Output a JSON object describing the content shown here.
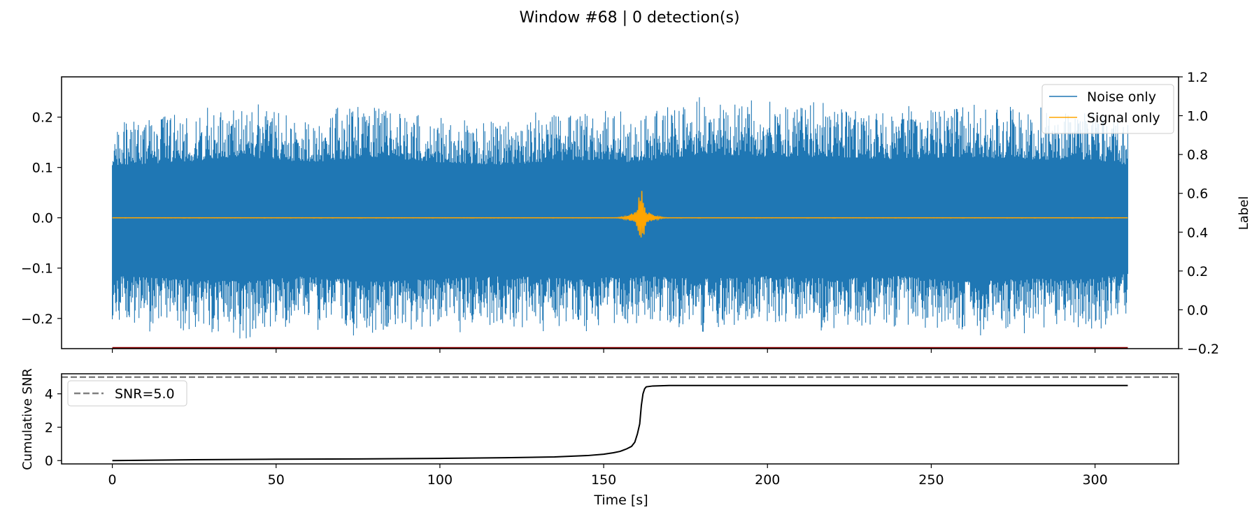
{
  "figure": {
    "title": "Window #68 | 0 detection(s)"
  },
  "chart_data": [
    {
      "type": "line",
      "panel": "waveform",
      "xlabel": "",
      "ylabel": "",
      "y2label": "Label",
      "xlim": [
        -15.5,
        325.5
      ],
      "ylim": [
        -0.26,
        0.28
      ],
      "y2lim": [
        -0.2,
        1.2
      ],
      "xticks": [
        0,
        50,
        100,
        150,
        200,
        250,
        300
      ],
      "yticks": [
        -0.2,
        -0.1,
        0.0,
        0.1,
        0.2
      ],
      "ytick_labels": [
        "−0.2",
        "−0.1",
        "0.0",
        "0.1",
        "0.2"
      ],
      "y2ticks": [
        -0.2,
        0.0,
        0.2,
        0.4,
        0.6,
        0.8,
        1.0,
        1.2
      ],
      "y2tick_labels": [
        "−0.2",
        "0.0",
        "0.2",
        "0.4",
        "0.6",
        "0.8",
        "1.0",
        "1.2"
      ],
      "legend": {
        "placement": "upper right",
        "entries": [
          "Noise only",
          "Signal only"
        ]
      },
      "series": [
        {
          "name": "Noise only",
          "color": "#1f77b4",
          "x_range": [
            0,
            310
          ],
          "envelope": {
            "x": [
              0,
              20,
              40,
              60,
              80,
              100,
              120,
              140,
              160,
              180,
              200,
              220,
              240,
              260,
              280,
              300,
              310
            ],
            "upper": [
              0.19,
              0.2,
              0.22,
              0.2,
              0.22,
              0.2,
              0.19,
              0.21,
              0.2,
              0.23,
              0.22,
              0.22,
              0.21,
              0.22,
              0.21,
              0.21,
              0.19
            ],
            "lower": [
              -0.21,
              -0.22,
              -0.23,
              -0.21,
              -0.23,
              -0.22,
              -0.21,
              -0.22,
              -0.21,
              -0.22,
              -0.21,
              -0.22,
              -0.21,
              -0.23,
              -0.22,
              -0.22,
              -0.2
            ]
          }
        },
        {
          "name": "Signal only",
          "color": "#ffa500",
          "x_range": [
            0,
            310
          ],
          "event_time": 161.5,
          "peak_amplitude": 0.06,
          "min_amplitude": -0.055
        },
        {
          "name": "",
          "axis": "right",
          "color": "#8b0000",
          "x": [
            0,
            310
          ],
          "values": [
            -0.2,
            -0.2
          ]
        }
      ]
    },
    {
      "type": "line",
      "panel": "cumulative_snr",
      "xlabel": "Time [s]",
      "ylabel": "Cumulative SNR",
      "xlim": [
        -15.5,
        325.5
      ],
      "ylim": [
        -0.2,
        5.2
      ],
      "xticks": [
        0,
        50,
        100,
        150,
        200,
        250,
        300
      ],
      "yticks": [
        0,
        2,
        4
      ],
      "legend": {
        "placement": "upper left",
        "entries": [
          "SNR=5.0"
        ]
      },
      "threshold": {
        "name": "SNR=5.0",
        "value": 5.0,
        "color": "#808080",
        "style": "dashed"
      },
      "series": [
        {
          "name": "",
          "color": "#000000",
          "x": [
            0,
            25,
            50,
            75,
            100,
            120,
            135,
            145,
            150,
            153,
            155,
            157,
            158.5,
            159.5,
            160.3,
            161,
            161.5,
            162,
            162.5,
            163,
            165,
            170,
            200,
            250,
            310
          ],
          "values": [
            0.0,
            0.05,
            0.08,
            0.1,
            0.13,
            0.17,
            0.22,
            0.3,
            0.38,
            0.47,
            0.55,
            0.7,
            0.85,
            1.1,
            1.6,
            2.2,
            3.3,
            4.0,
            4.3,
            4.42,
            4.47,
            4.5,
            4.5,
            4.5,
            4.5
          ]
        }
      ]
    }
  ]
}
